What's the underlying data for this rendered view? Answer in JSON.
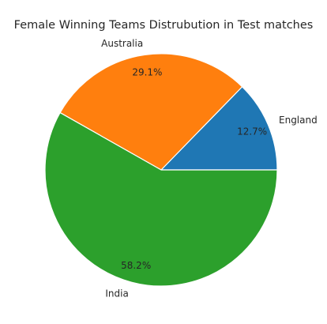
{
  "chart_data": {
    "type": "pie",
    "title": "Female Winning Teams Distrubution in Test matches",
    "categories": [
      "England",
      "Australia",
      "India"
    ],
    "values": [
      12.7,
      29.1,
      58.2
    ],
    "percent_labels": [
      "12.7%",
      "29.1%",
      "58.2%"
    ],
    "colors": [
      "#1f77b4",
      "#ff7f0e",
      "#2ca02c"
    ],
    "legend": "none"
  }
}
